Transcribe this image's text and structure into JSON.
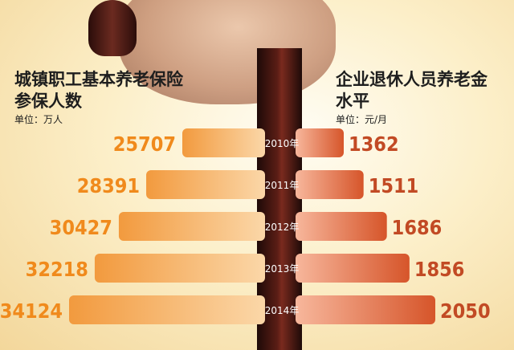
{
  "headers": {
    "left_title_line1": "城镇职工基本养老保险",
    "left_title_line2": "参保人数",
    "left_unit": "单位：万人",
    "right_title_line1": "企业退休人员养老金",
    "right_title_line2": "水平",
    "right_unit": "单位：元/月"
  },
  "chart_data": {
    "type": "bar",
    "categories": [
      "2010年",
      "2011年",
      "2012年",
      "2013年",
      "2014年"
    ],
    "series": [
      {
        "name": "城镇职工基本养老保险参保人数",
        "values": [
          25707,
          28391,
          30427,
          32218,
          34124
        ]
      },
      {
        "name": "企业退休人员养老金水平",
        "values": [
          1362,
          1511,
          1686,
          1856,
          2050
        ]
      }
    ],
    "colors": {
      "left_bar": "#f29a3e",
      "left_bar_light": "#fbd7a8",
      "right_bar": "#d6552a",
      "right_bar_light": "#f7b79c",
      "left_label": "#f08a1c",
      "right_label": "#c24a24"
    },
    "orientation": "diverging-horizontal"
  }
}
